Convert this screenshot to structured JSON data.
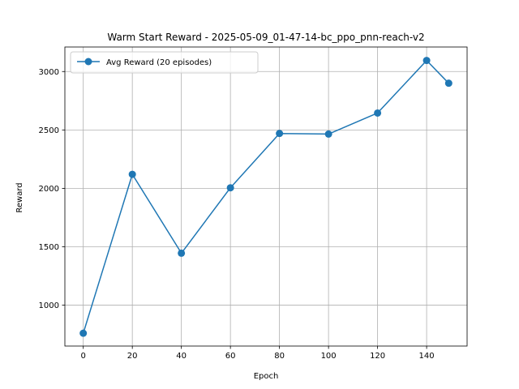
{
  "chart_data": {
    "type": "line",
    "title": "Warm Start Reward - 2025-05-09_01-47-14-bc_ppo_pnn-reach-v2",
    "xlabel": "Epoch",
    "ylabel": "Reward",
    "xlim": [
      -7.5,
      156.5
    ],
    "ylim": [
      650,
      3210
    ],
    "xticks": [
      0,
      20,
      40,
      60,
      80,
      100,
      120,
      140
    ],
    "yticks": [
      1000,
      1500,
      2000,
      2500,
      3000
    ],
    "grid": true,
    "legend_position": "upper-left",
    "series": [
      {
        "name": "Avg Reward (20 episodes)",
        "color": "#1f77b4",
        "marker": "circle",
        "x": [
          0,
          20,
          40,
          60,
          80,
          100,
          120,
          140,
          149
        ],
        "y": [
          760,
          2120,
          1445,
          2005,
          2470,
          2465,
          2645,
          3095,
          2900
        ]
      }
    ]
  }
}
